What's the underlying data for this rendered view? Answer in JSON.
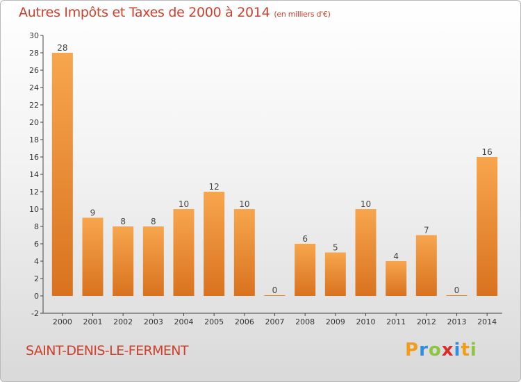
{
  "title": "Autres Impôts et Taxes de 2000 à 2014",
  "subtitle": "(en milliers d'€)",
  "commune": "SAINT-DENIS-LE-FERMENT",
  "logo": {
    "letters": [
      "P",
      "r",
      "o",
      "x",
      "i",
      "t",
      "i"
    ],
    "colors": [
      "#f39c1a",
      "#2e8ee0",
      "#8cc63f",
      "#e02a2a",
      "#2e8ee0",
      "#f39c1a",
      "#8cc63f"
    ]
  },
  "colors": {
    "bar_top": "#f7a64d",
    "bar_bottom": "#d9721f",
    "title": "#d13f2a"
  },
  "chart_data": {
    "type": "bar",
    "categories": [
      "2000",
      "2001",
      "2002",
      "2003",
      "2004",
      "2005",
      "2006",
      "2007",
      "2008",
      "2009",
      "2010",
      "2011",
      "2012",
      "2013",
      "2014"
    ],
    "values": [
      28,
      9,
      8,
      8,
      10,
      12,
      10,
      0,
      6,
      5,
      10,
      4,
      7,
      0,
      16
    ],
    "ylim": [
      -2,
      30
    ],
    "yticks": [
      "-2",
      "0",
      "2",
      "4",
      "6",
      "8",
      "10",
      "12",
      "14",
      "16",
      "18",
      "20",
      "22",
      "24",
      "26",
      "28",
      "30"
    ],
    "grid": false,
    "data_labels": true
  }
}
